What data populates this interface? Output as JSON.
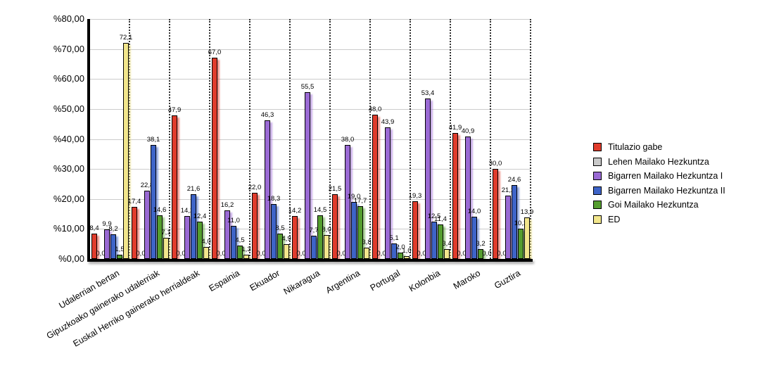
{
  "chart_data": {
    "type": "bar",
    "title": "",
    "categories": [
      "Udalerrian bertan",
      "Gipuzkoako gainerako udalerriak",
      "Euskal Herriko gainerako herrialdeak",
      "Espainia",
      "Ekuador",
      "Nikaragua",
      "Argentina",
      "Portugal",
      "Kolonbia",
      "Maroko",
      "Guztira"
    ],
    "series": [
      {
        "name": "Titulazio gabe",
        "color": "#e03c2c",
        "values": [
          8.4,
          17.4,
          47.9,
          67.0,
          22.0,
          14.2,
          21.5,
          48.0,
          19.3,
          41.9,
          30.0
        ]
      },
      {
        "name": "Lehen Mailako Hezkuntza",
        "color": "#c9c9c9",
        "values": [
          0.0,
          0.0,
          0.0,
          0.0,
          0.0,
          0.0,
          0.0,
          0.0,
          0.0,
          0.0,
          0.0
        ]
      },
      {
        "name": "Bigarren Mailako Hezkuntza I",
        "color": "#9a6ad4",
        "values": [
          9.9,
          22.8,
          14.2,
          16.2,
          46.3,
          55.5,
          38.0,
          43.9,
          53.4,
          40.9,
          21.2
        ]
      },
      {
        "name": "Bigarren Mailako Hezkuntza II",
        "color": "#3e64c8",
        "values": [
          8.2,
          38.1,
          21.6,
          11.0,
          18.3,
          7.7,
          19.0,
          5.1,
          12.5,
          14.0,
          24.6
        ]
      },
      {
        "name": "Goi Mailako Hezkuntza",
        "color": "#559e2f",
        "values": [
          1.5,
          14.6,
          12.4,
          4.5,
          8.5,
          14.5,
          17.7,
          2.0,
          11.4,
          3.2,
          10.2
        ]
      },
      {
        "name": "ED",
        "color": "#f2e68c",
        "values": [
          72.1,
          7.1,
          4.0,
          1.3,
          4.9,
          8.0,
          3.8,
          1.0,
          3.4,
          0.0,
          13.9
        ]
      }
    ],
    "ylim": [
      0,
      80
    ],
    "ytick_step": 10,
    "ytick_labels": [
      "%0,00",
      "%10,00",
      "%20,00",
      "%30,00",
      "%40,00",
      "%50,00",
      "%60,00",
      "%70,00",
      "%80,00"
    ],
    "value_label_format": "decimal-comma-1",
    "grid": {
      "horizontal": true,
      "vertical_dotted": true
    },
    "legend_position": "right",
    "background_color": "#ffffff",
    "grid_color": "#cccccc",
    "axis_color": "#000000"
  }
}
